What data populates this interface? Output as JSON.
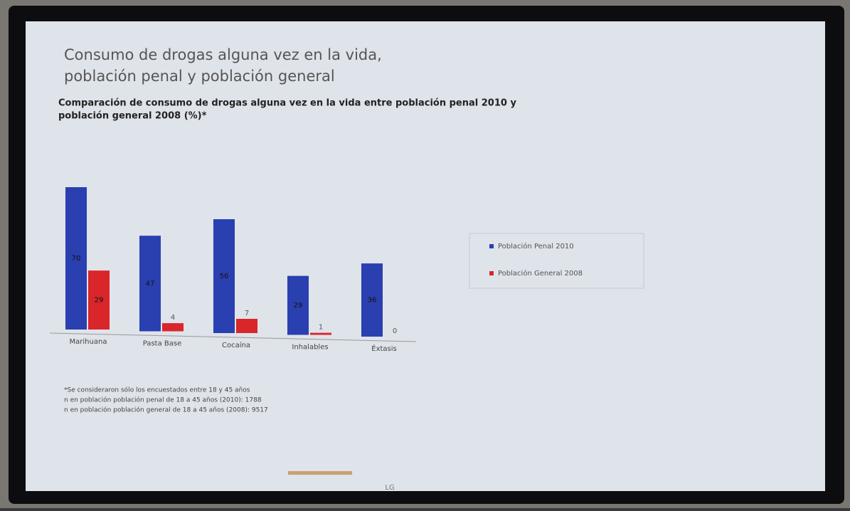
{
  "tv": {
    "brand": "LG"
  },
  "chart_data": {
    "type": "bar",
    "title": [
      "Consumo de drogas alguna vez en la vida,",
      "población penal y población general"
    ],
    "subtitle": [
      "Comparación de consumo de drogas alguna vez en la vida entre población penal 2010 y",
      "población general 2008 (%)*"
    ],
    "categories": [
      "Marihuana",
      "Pasta Base",
      "Cocaína",
      "Inhalables",
      "Éxtasis"
    ],
    "series": [
      {
        "name": "Población Penal 2010",
        "color": "#2a3fb0",
        "values": [
          70,
          47,
          56,
          29,
          36
        ]
      },
      {
        "name": "Población General 2008",
        "color": "#d8262a",
        "values": [
          29,
          4,
          7,
          1,
          0
        ]
      }
    ],
    "notes": [
      "*Se consideraron sólo los encuestados entre 18 y 45 años",
      "n en población población penal de 18 a 45 años (2010): 1788",
      "n en población población general de 18 a 45 años (2008): 9517"
    ]
  }
}
